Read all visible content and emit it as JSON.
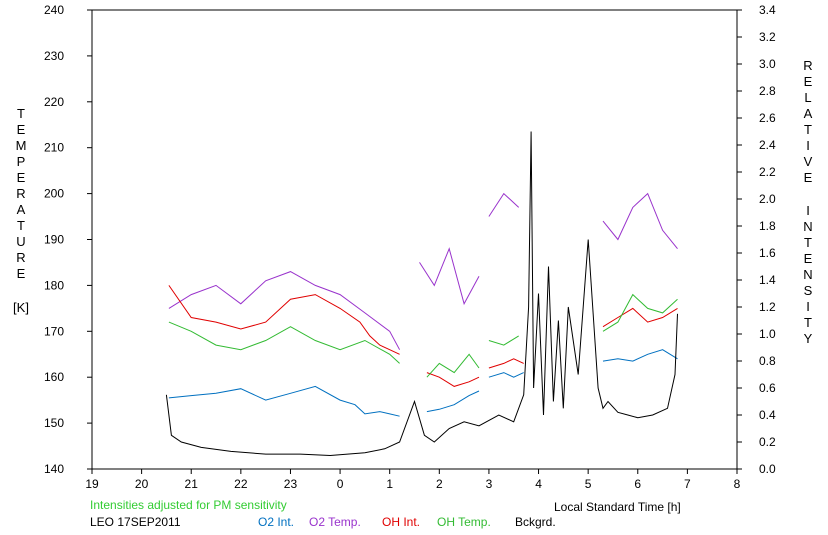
{
  "chart_data": {
    "type": "line",
    "x_unit_label": "Local Standard Time [h]",
    "x_range": [
      19,
      8
    ],
    "x_ticks": [
      "19",
      "20",
      "21",
      "22",
      "23",
      "0",
      "1",
      "2",
      "3",
      "4",
      "5",
      "6",
      "7",
      "8"
    ],
    "left_axis": {
      "title_letters": [
        "T",
        "E",
        "M",
        "P",
        "E",
        "R",
        "A",
        "T",
        "U",
        "R",
        "E"
      ],
      "unit": "[K]",
      "ylim": [
        140,
        240
      ],
      "ticks": [
        "140",
        "150",
        "160",
        "170",
        "180",
        "190",
        "200",
        "210",
        "220",
        "230",
        "240"
      ]
    },
    "right_axis": {
      "title_letters_1": [
        "R",
        "E",
        "L",
        "A",
        "T",
        "I",
        "V",
        "E"
      ],
      "title_letters_2": [
        "I",
        "N",
        "T",
        "E",
        "N",
        "S",
        "I",
        "T",
        "Y"
      ],
      "ylim": [
        0.0,
        3.4
      ],
      "ticks": [
        "0.0",
        "0.2",
        "0.4",
        "0.6",
        "0.8",
        "1.0",
        "1.2",
        "1.4",
        "1.6",
        "1.8",
        "2.0",
        "2.2",
        "2.4",
        "2.6",
        "2.8",
        "3.0",
        "3.2",
        "3.4"
      ]
    },
    "annotation": "Intensities adjusted for PM sensitivity",
    "station_label": "LEO 17SEP2011",
    "series": [
      {
        "name": "O2 Int.",
        "color": "#0070c0",
        "axis": "left",
        "segments": [
          {
            "x": [
              20.55,
              21.0,
              21.5,
              22.0,
              22.5,
              23.0,
              23.5,
              24.0,
              24.3,
              24.5,
              24.8,
              25.0,
              25.2
            ],
            "y": [
              155.5,
              156,
              156.5,
              157.5,
              155,
              156.5,
              158,
              155,
              154,
              152,
              152.5,
              152,
              151.5
            ]
          },
          {
            "x": [
              25.75,
              26.0,
              26.3,
              26.6,
              26.8
            ],
            "y": [
              152.5,
              153,
              154,
              156,
              157
            ]
          },
          {
            "x": [
              27.0,
              27.3,
              27.5,
              27.7
            ],
            "y": [
              160,
              161,
              160,
              161
            ]
          },
          {
            "x": [
              29.3,
              29.6,
              29.9,
              30.2,
              30.5,
              30.8
            ],
            "y": [
              163.5,
              164,
              163.5,
              165,
              166,
              164
            ]
          }
        ]
      },
      {
        "name": "O2 Temp.",
        "color": "#9933cc",
        "axis": "left",
        "segments": [
          {
            "x": [
              20.55,
              21.0,
              21.5,
              22.0,
              22.5,
              23.0,
              23.5,
              24.0,
              24.5,
              25.0,
              25.2
            ],
            "y": [
              175,
              178,
              180,
              176,
              181,
              183,
              180,
              178,
              174,
              170,
              166
            ]
          },
          {
            "x": [
              25.6,
              25.9,
              26.2,
              26.5,
              26.8
            ],
            "y": [
              185,
              180,
              188,
              176,
              182
            ]
          },
          {
            "x": [
              27.0,
              27.3,
              27.6
            ],
            "y": [
              195,
              200,
              197
            ]
          },
          {
            "x": [
              29.3,
              29.6,
              29.9,
              30.2,
              30.5,
              30.8
            ],
            "y": [
              194,
              190,
              197,
              200,
              192,
              188
            ]
          }
        ]
      },
      {
        "name": "OH Int.",
        "color": "#e00000",
        "axis": "left",
        "segments": [
          {
            "x": [
              20.55,
              21.0,
              21.5,
              22.0,
              22.5,
              23.0,
              23.5,
              24.0,
              24.4,
              24.6,
              24.8,
              25.0,
              25.2
            ],
            "y": [
              180,
              173,
              172,
              170.5,
              172,
              177,
              178,
              175,
              172,
              169,
              167,
              166,
              165
            ]
          },
          {
            "x": [
              25.75,
              26.0,
              26.3,
              26.6,
              26.8
            ],
            "y": [
              161,
              160,
              158,
              159,
              160
            ]
          },
          {
            "x": [
              27.0,
              27.3,
              27.5,
              27.7
            ],
            "y": [
              162,
              163,
              164,
              163
            ]
          },
          {
            "x": [
              29.3,
              29.6,
              29.9,
              30.2,
              30.5,
              30.8
            ],
            "y": [
              171,
              173,
              175,
              172,
              173,
              175
            ]
          }
        ]
      },
      {
        "name": "OH Temp.",
        "color": "#33bb33",
        "axis": "left",
        "segments": [
          {
            "x": [
              20.55,
              21.0,
              21.5,
              22.0,
              22.5,
              23.0,
              23.5,
              24.0,
              24.5,
              25.0,
              25.2
            ],
            "y": [
              172,
              170,
              167,
              166,
              168,
              171,
              168,
              166,
              168,
              165,
              163
            ]
          },
          {
            "x": [
              25.75,
              26.0,
              26.3,
              26.6,
              26.8
            ],
            "y": [
              160,
              163,
              161,
              165,
              162
            ]
          },
          {
            "x": [
              27.0,
              27.3,
              27.6
            ],
            "y": [
              168,
              167,
              169
            ]
          },
          {
            "x": [
              29.3,
              29.6,
              29.9,
              30.2,
              30.5,
              30.8
            ],
            "y": [
              170,
              172,
              178,
              175,
              174,
              177
            ]
          }
        ]
      },
      {
        "name": "Bckgrd.",
        "color": "#000000",
        "axis": "right",
        "segments": [
          {
            "x": [
              20.5,
              20.6,
              20.8,
              21.2,
              21.8,
              22.5,
              23.2,
              23.8,
              24.5,
              24.9,
              25.2,
              25.5,
              25.7,
              25.9,
              26.2,
              26.5,
              26.8,
              27.2,
              27.5,
              27.7,
              27.8,
              27.85,
              27.9,
              28.0,
              28.1,
              28.2,
              28.3,
              28.4,
              28.5,
              28.6,
              28.8,
              29.0,
              29.2,
              29.3,
              29.4,
              29.6,
              29.8,
              30.0,
              30.3,
              30.6,
              30.75,
              30.8
            ],
            "y": [
              0.55,
              0.25,
              0.2,
              0.16,
              0.13,
              0.11,
              0.11,
              0.1,
              0.12,
              0.15,
              0.2,
              0.5,
              0.25,
              0.2,
              0.3,
              0.35,
              0.32,
              0.4,
              0.35,
              0.55,
              1.2,
              2.5,
              0.6,
              1.3,
              0.4,
              1.5,
              0.5,
              1.1,
              0.45,
              1.2,
              0.7,
              1.7,
              0.6,
              0.45,
              0.5,
              0.42,
              0.4,
              0.38,
              0.4,
              0.45,
              0.7,
              1.15
            ]
          }
        ]
      }
    ],
    "legend": [
      "O2 Int.",
      "O2 Temp.",
      "OH Int.",
      "OH Temp.",
      "Bckgrd."
    ],
    "legend_placement": "bottom"
  }
}
